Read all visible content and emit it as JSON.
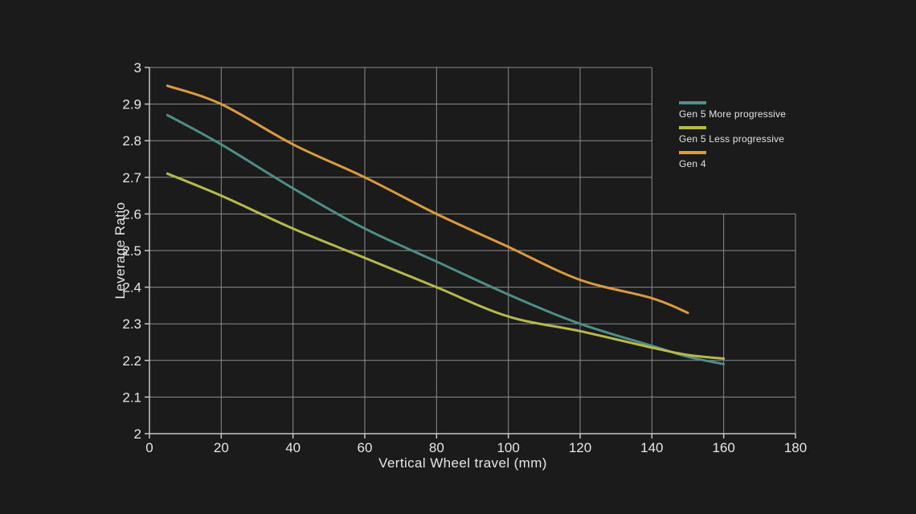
{
  "colors": {
    "background": "#1b1b1b",
    "grid": "#8c8c8c",
    "axis": "#c6c6c6",
    "text": "#e6e6e6",
    "legend_text": "#e2e2e2"
  },
  "chart_data": {
    "type": "line",
    "title": "",
    "xlabel": "Vertical Wheel travel (mm)",
    "ylabel": "Leverage Ratio",
    "xlim": [
      0,
      180
    ],
    "ylim": [
      2,
      3
    ],
    "grid": true,
    "grid_notch": {
      "x": 140,
      "y": 2.6
    },
    "legend_position": "right-top",
    "xticks": {
      "values": [
        0,
        20,
        40,
        60,
        80,
        100,
        120,
        140,
        160,
        180
      ],
      "labels": [
        "0",
        "20",
        "40",
        "60",
        "80",
        "100",
        "120",
        "140",
        "160",
        "180"
      ]
    },
    "yticks": {
      "values": [
        2,
        2.1,
        2.2,
        2.3,
        2.4,
        2.5,
        2.6,
        2.7,
        2.8,
        2.9,
        3
      ],
      "labels": [
        "2",
        "2.1",
        "2.2",
        "2.3",
        "2.4",
        "2.5",
        "2.6",
        "2.7",
        "2.8",
        "2.9",
        "3"
      ]
    },
    "series": [
      {
        "name": "Gen 5 More progressive",
        "color": "#4d8e87",
        "x": [
          5,
          20,
          40,
          60,
          80,
          100,
          120,
          140,
          150,
          160
        ],
        "y": [
          2.87,
          2.79,
          2.67,
          2.56,
          2.47,
          2.38,
          2.3,
          2.24,
          2.21,
          2.19
        ]
      },
      {
        "name": "Gen 5 Less progressive",
        "color": "#b7ba4a",
        "x": [
          5,
          20,
          40,
          60,
          80,
          100,
          120,
          140,
          150,
          160
        ],
        "y": [
          2.71,
          2.65,
          2.56,
          2.48,
          2.4,
          2.32,
          2.28,
          2.235,
          2.215,
          2.205
        ]
      },
      {
        "name": "Gen 4",
        "color": "#dd9c3c",
        "x": [
          5,
          20,
          40,
          60,
          80,
          100,
          120,
          140,
          150
        ],
        "y": [
          2.95,
          2.9,
          2.79,
          2.7,
          2.6,
          2.51,
          2.42,
          2.37,
          2.33
        ]
      }
    ]
  }
}
